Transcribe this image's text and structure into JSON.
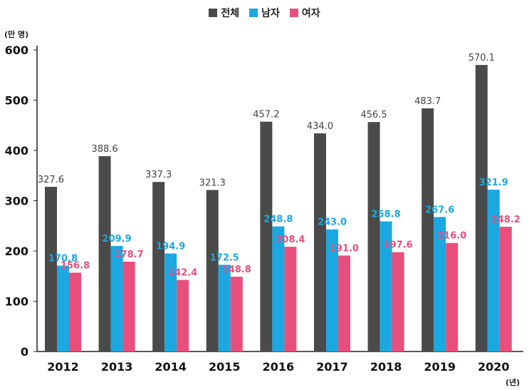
{
  "chart_data": {
    "type": "bar",
    "y_unit": "(만 명)",
    "x_unit": "(년)",
    "categories": [
      "2012",
      "2013",
      "2014",
      "2015",
      "2016",
      "2017",
      "2018",
      "2019",
      "2020"
    ],
    "series": [
      {
        "name": "전체",
        "color": "#4a4a4a",
        "values": [
          327.6,
          388.6,
          337.3,
          321.3,
          457.2,
          434.0,
          456.5,
          483.7,
          570.1
        ],
        "labels": [
          "327.6",
          "388.6",
          "337.3",
          "321.3",
          "457.2",
          "434.0",
          "456.5",
          "483.7",
          "570.1"
        ],
        "label_color": "#444444"
      },
      {
        "name": "남자",
        "color": "#1ba8e0",
        "values": [
          170.8,
          209.9,
          194.9,
          172.5,
          248.8,
          243.0,
          258.8,
          267.6,
          321.9
        ],
        "labels": [
          "170.8",
          "209.9",
          "194.9",
          "172.5",
          "248.8",
          "243.0",
          "258.8",
          "267.6",
          "321.9"
        ],
        "label_color": "#1ba8e0"
      },
      {
        "name": "여자",
        "color": "#e84f7d",
        "values": [
          156.8,
          178.7,
          142.4,
          148.8,
          208.4,
          191.0,
          197.6,
          216.0,
          248.2
        ],
        "labels": [
          "156.8",
          "178.7",
          "142.4",
          "148.8",
          "208.4",
          "191.0",
          "197.6",
          "216.0",
          "248.2"
        ],
        "label_color": "#e84f7d"
      }
    ],
    "y_ticks": [
      "0",
      "100",
      "200",
      "300",
      "400",
      "500",
      "600"
    ],
    "ylim": [
      0,
      600
    ],
    "grid": false,
    "legend_position": "top-center"
  }
}
